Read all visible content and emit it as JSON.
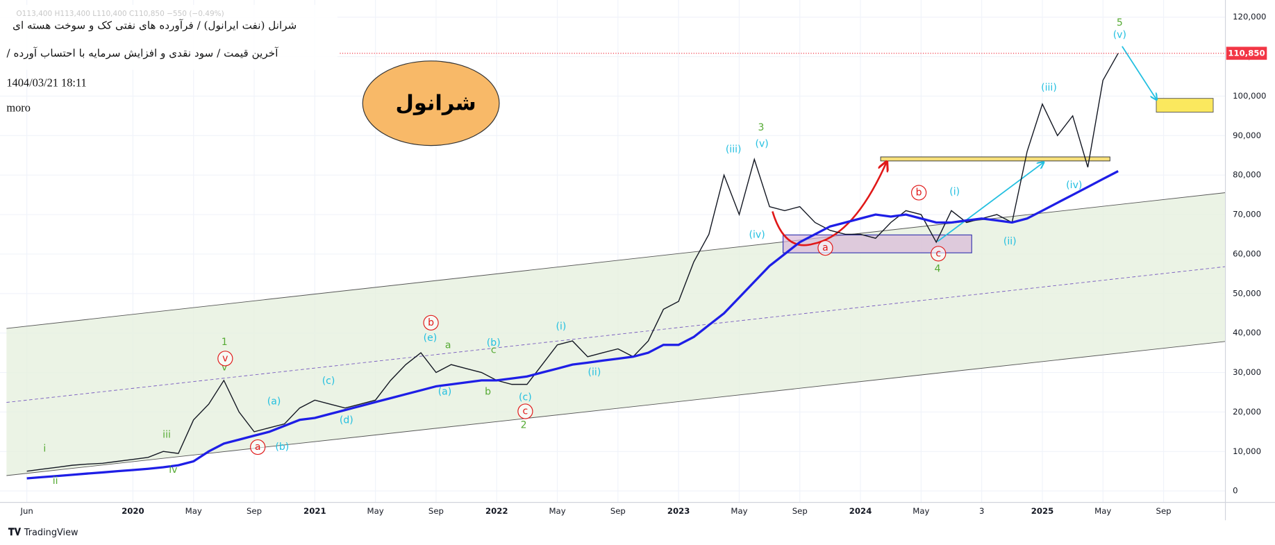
{
  "chart_data": {
    "type": "line",
    "ohlc_text": "O113,400 H113,400 L110,400 C110,850 −550 (−0.49%)",
    "title": "شرانل (نفت ایرانول) / فرآورده های نفتی کک و سوخت هسته ای",
    "subtitle": "آخرین قیمت / سود نقدی و افزایش سرمایه با احتساب آورده /",
    "timestamp": "1404/03/21 18:11",
    "author": "moro",
    "badge": "شرانول",
    "brand": "TradingView",
    "categories": [
      "Jun",
      null,
      null,
      null,
      null,
      null,
      null,
      "2020",
      null,
      null,
      null,
      "May",
      null,
      null,
      null,
      "Sep",
      null,
      null,
      null,
      "2021",
      null,
      null,
      null,
      "May",
      null,
      null,
      null,
      "Sep",
      null,
      null,
      null,
      "2022",
      null,
      null,
      null,
      "May",
      null,
      null,
      null,
      "Sep",
      null,
      null,
      null,
      "2023",
      null,
      null,
      null,
      "May",
      null,
      null,
      null,
      "Sep",
      null,
      null,
      null,
      "2024",
      null,
      null,
      null,
      "May",
      null,
      null,
      null,
      "3",
      null,
      null,
      null,
      "2025",
      null,
      null,
      null,
      "May",
      null,
      null,
      null,
      "Sep"
    ],
    "series": [
      {
        "name": "price",
        "color": "#131722",
        "values": [
          5000,
          5500,
          6000,
          6500,
          6800,
          7000,
          7500,
          8000,
          8500,
          10000,
          9500,
          18000,
          22000,
          28000,
          20000,
          15000,
          16000,
          17000,
          21000,
          23000,
          22000,
          21000,
          22000,
          23000,
          28000,
          32000,
          35000,
          30000,
          32000,
          31000,
          30000,
          28000,
          27000,
          27000,
          32000,
          37000,
          38000,
          34000,
          35000,
          36000,
          34000,
          38000,
          46000,
          48000,
          58000,
          65000,
          80000,
          70000,
          84000,
          72000,
          71000,
          72000,
          68000,
          66000,
          65000,
          65000,
          64000,
          68000,
          71000,
          70000,
          63000,
          71000,
          68000,
          69000,
          70000,
          68000,
          86000,
          98000,
          90000,
          95000,
          82000,
          104000,
          110850,
          null,
          null,
          null
        ]
      },
      {
        "name": "moving-average",
        "color": "#1e1ee6",
        "values": [
          3200,
          3500,
          3800,
          4100,
          4400,
          4700,
          5000,
          5300,
          5600,
          6000,
          6500,
          7500,
          10000,
          12000,
          13000,
          14000,
          15000,
          16500,
          18000,
          18500,
          19500,
          20500,
          21500,
          22500,
          23500,
          24500,
          25500,
          26500,
          27000,
          27500,
          28000,
          28000,
          28500,
          29000,
          30000,
          31000,
          32000,
          32500,
          33000,
          33500,
          34000,
          35000,
          37000,
          37000,
          39000,
          42000,
          45000,
          49000,
          53000,
          57000,
          60000,
          63000,
          65000,
          67000,
          68000,
          69000,
          70000,
          69500,
          70000,
          69000,
          68000,
          68000,
          68500,
          69000,
          68500,
          68000,
          69000,
          71000,
          73000,
          75000,
          77000,
          79000,
          81000,
          null,
          null,
          null
        ]
      }
    ],
    "last_price": {
      "value": 110850,
      "label": "110,850"
    },
    "ylim": [
      -2900,
      122700
    ],
    "yticks": [
      {
        "value": 0,
        "label": "0"
      },
      {
        "value": 10000,
        "label": "10,000"
      },
      {
        "value": 20000,
        "label": "20,000"
      },
      {
        "value": 30000,
        "label": "30,000"
      },
      {
        "value": 40000,
        "label": "40,000"
      },
      {
        "value": 50000,
        "label": "50,000"
      },
      {
        "value": 60000,
        "label": "60,000"
      },
      {
        "value": 70000,
        "label": "70,000"
      },
      {
        "value": 80000,
        "label": "80,000"
      },
      {
        "value": 90000,
        "label": "90,000"
      },
      {
        "value": 100000,
        "label": "100,000"
      },
      {
        "value": 110000,
        "label": "110,000"
      },
      {
        "value": 120000,
        "label": "120,000"
      }
    ],
    "grid": true,
    "annotations": [
      "i",
      "ii",
      "iii",
      "iv",
      "1",
      "v",
      "2",
      "3",
      "4",
      "5",
      "a",
      "b",
      "c",
      "(a)",
      "(b)",
      "(c)",
      "(d)",
      "(e)",
      "(a)",
      "(b)",
      "(c)",
      "(i)",
      "(ii)",
      "(iii)",
      "(iv)",
      "(v)",
      "(i)",
      "(ii)",
      "(iii)",
      "(iv)",
      "(v)",
      "v",
      "a",
      "b",
      "c",
      "a",
      "b",
      "c"
    ]
  }
}
